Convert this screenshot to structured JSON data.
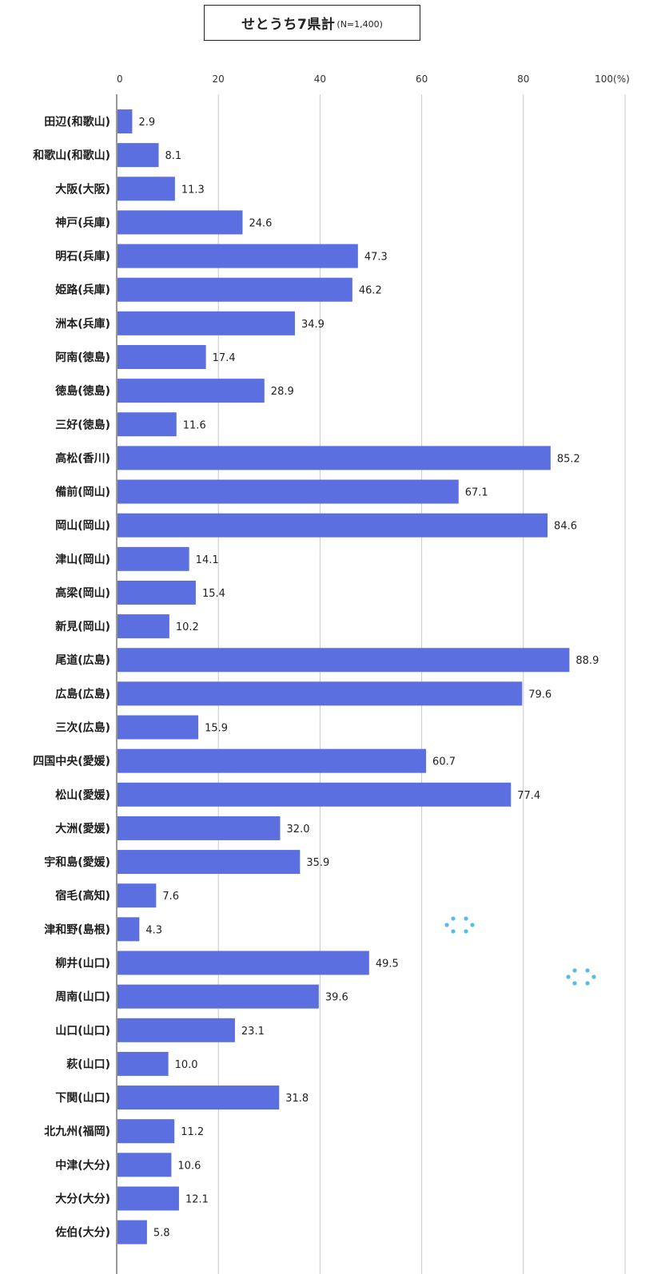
{
  "chart_data": {
    "type": "bar",
    "orientation": "horizontal",
    "title": "せとうち7県計",
    "subtitle": "(N=1,400)",
    "xlim": [
      0,
      100
    ],
    "xticks": [
      "0",
      "20",
      "40",
      "60",
      "80",
      "100(%)"
    ],
    "grid": true,
    "bar_color": "#5B6FE0",
    "decoration_color": "#5BB9E8",
    "categories": [
      "田辺(和歌山)",
      "和歌山(和歌山)",
      "大阪(大阪)",
      "神戸(兵庫)",
      "明石(兵庫)",
      "姫路(兵庫)",
      "洲本(兵庫)",
      "阿南(徳島)",
      "徳島(徳島)",
      "三好(徳島)",
      "高松(香川)",
      "備前(岡山)",
      "岡山(岡山)",
      "津山(岡山)",
      "高梁(岡山)",
      "新見(岡山)",
      "尾道(広島)",
      "広島(広島)",
      "三次(広島)",
      "四国中央(愛媛)",
      "松山(愛媛)",
      "大洲(愛媛)",
      "宇和島(愛媛)",
      "宿毛(高知)",
      "津和野(島根)",
      "柳井(山口)",
      "周南(山口)",
      "山口(山口)",
      "萩(山口)",
      "下関(山口)",
      "北九州(福岡)",
      "中津(大分)",
      "大分(大分)",
      "佐伯(大分)"
    ],
    "values": [
      2.9,
      8.1,
      11.3,
      24.6,
      47.3,
      46.2,
      34.9,
      17.4,
      28.9,
      11.6,
      85.2,
      67.1,
      84.6,
      14.1,
      15.4,
      10.2,
      88.9,
      79.6,
      15.9,
      60.7,
      77.4,
      32.0,
      35.9,
      7.6,
      4.3,
      49.5,
      39.6,
      23.1,
      10.0,
      31.8,
      11.2,
      10.6,
      12.1,
      5.8
    ],
    "value_labels": [
      "2.9",
      "8.1",
      "11.3",
      "24.6",
      "47.3",
      "46.2",
      "34.9",
      "17.4",
      "28.9",
      "11.6",
      "85.2",
      "67.1",
      "84.6",
      "14.1",
      "15.4",
      "10.2",
      "88.9",
      "79.6",
      "15.9",
      "60.7",
      "77.4",
      "32.0",
      "35.9",
      "7.6",
      "4.3",
      "49.5",
      "39.6",
      "23.1",
      "10.0",
      "31.8",
      "11.2",
      "10.6",
      "12.1",
      "5.8"
    ]
  }
}
